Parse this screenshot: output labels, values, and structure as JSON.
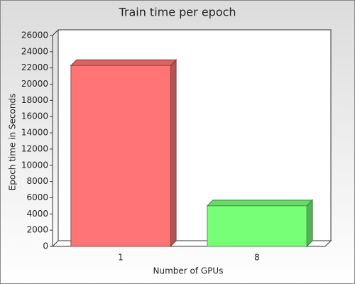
{
  "chart_data": {
    "type": "bar3d",
    "title": "Train time per epoch",
    "x_label": "Number of GPUs",
    "y_label": "Epoch time in Seconds",
    "categories": [
      "1",
      "8"
    ],
    "values": [
      22300,
      5000
    ],
    "colors": [
      "#ff7575",
      "#78ff78"
    ],
    "ylim": [
      0,
      26000
    ],
    "yticks": [
      0,
      2000,
      4000,
      6000,
      8000,
      10000,
      12000,
      14000,
      16000,
      18000,
      20000,
      22000,
      24000,
      26000
    ]
  }
}
